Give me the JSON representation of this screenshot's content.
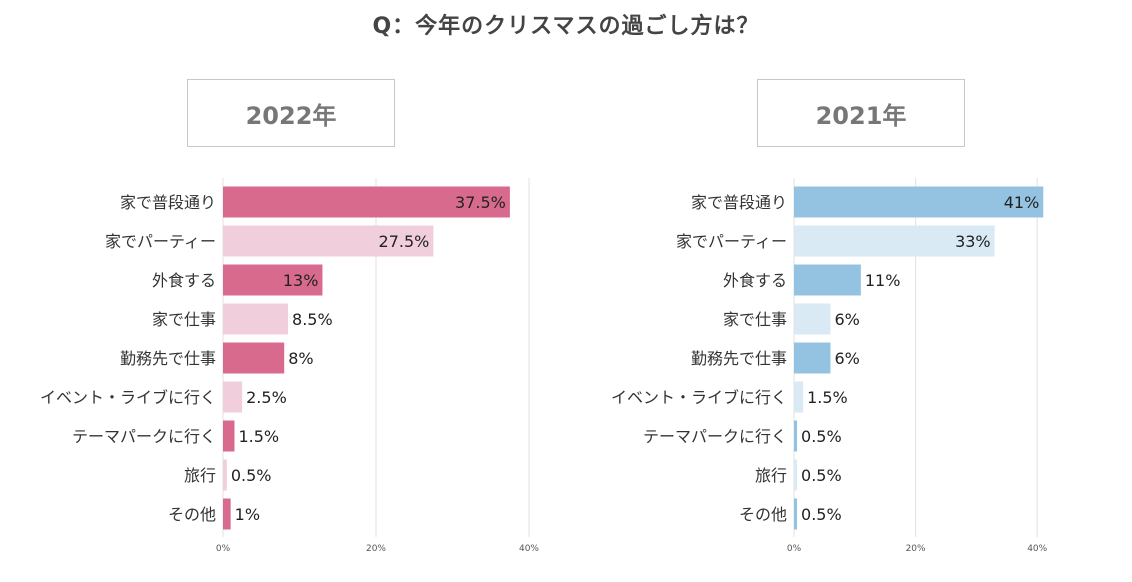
{
  "title": "Q：今年のクリスマスの過ごし方は？",
  "chart_data": [
    {
      "type": "bar",
      "title": "2022年",
      "orientation": "horizontal",
      "categories": [
        "家で普段通り",
        "家でパーティー",
        "外食する",
        "家で仕事",
        "勤務先で仕事",
        "イベント・ライブに行く",
        "テーマパークに行く",
        "旅行",
        "その他"
      ],
      "values": [
        37.5,
        27.5,
        13,
        8.5,
        8,
        2.5,
        1.5,
        0.5,
        1
      ],
      "value_labels": [
        "37.5%",
        "27.5%",
        "13%",
        "8.5%",
        "8%",
        "2.5%",
        "1.5%",
        "0.5%",
        "1%"
      ],
      "xlim": [
        0,
        40
      ],
      "xticks": [
        "0%",
        "20%",
        "40%"
      ],
      "grid": true,
      "colors": [
        "#d86a8e",
        "#f0cedb",
        "#d86a8e",
        "#f0cedb",
        "#d86a8e",
        "#f0cedb",
        "#d86a8e",
        "#f0cedb",
        "#d86a8e"
      ]
    },
    {
      "type": "bar",
      "title": "2021年",
      "orientation": "horizontal",
      "categories": [
        "家で普段通り",
        "家でパーティー",
        "外食する",
        "家で仕事",
        "勤務先で仕事",
        "イベント・ライブに行く",
        "テーマパークに行く",
        "旅行",
        "その他"
      ],
      "values": [
        41,
        33,
        11,
        6,
        6,
        1.5,
        0.5,
        0.5,
        0.5
      ],
      "value_labels": [
        "41%",
        "33%",
        "11%",
        "6%",
        "6%",
        "1.5%",
        "0.5%",
        "0.5%",
        "0.5%"
      ],
      "xlim": [
        0,
        40
      ],
      "xticks": [
        "0%",
        "20%",
        "40%"
      ],
      "grid": true,
      "colors": [
        "#94c3e1",
        "#d9eaf5",
        "#94c3e1",
        "#d9eaf5",
        "#94c3e1",
        "#d9eaf5",
        "#94c3e1",
        "#d9eaf5",
        "#94c3e1"
      ]
    }
  ]
}
